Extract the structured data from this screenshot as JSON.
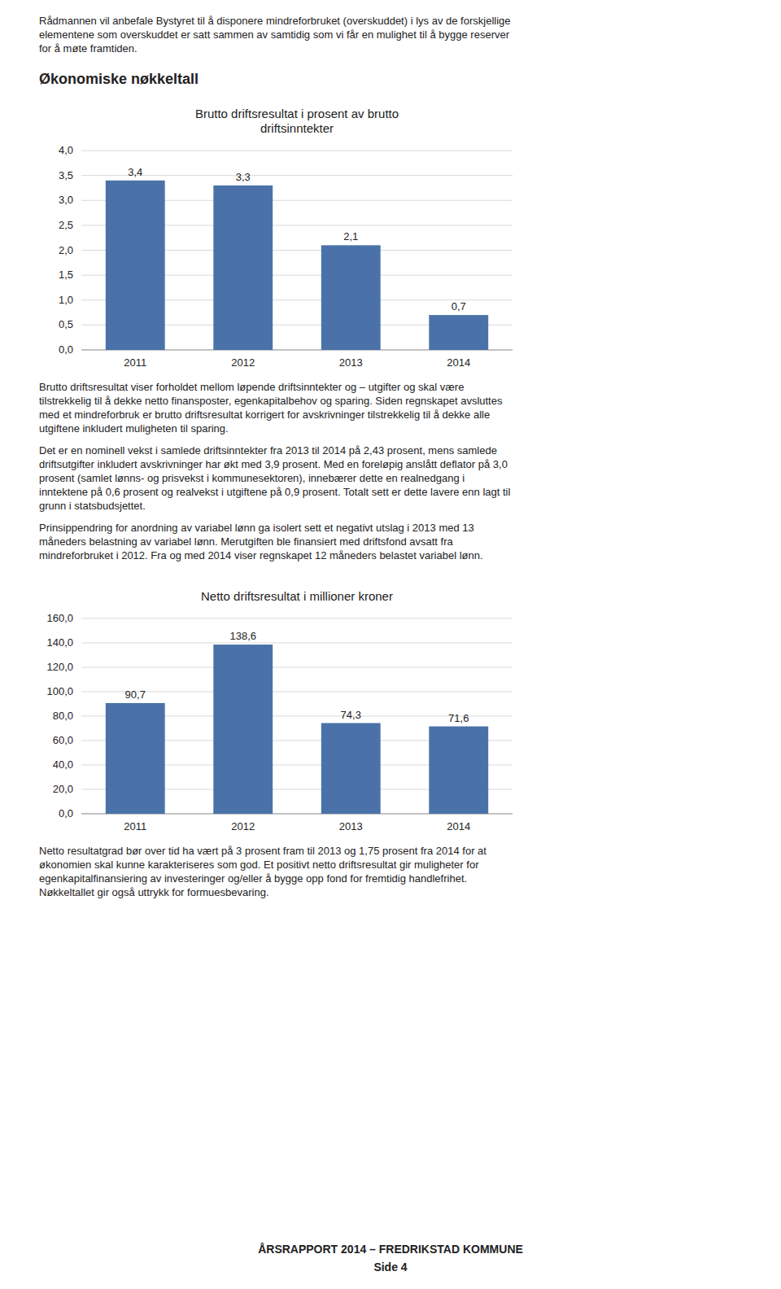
{
  "page_text": {
    "intro": [
      "Rådmannen vil anbefale Bystyret til å disponere mindreforbruket (overskuddet) i lys av de forskjellige",
      "elementene som overskuddet er satt sammen av samtidig som vi får en mulighet til å bygge reserver",
      "for å møte framtiden."
    ],
    "heading": "Økonomiske nøkkeltall",
    "paragraphs": [
      [
        "Brutto driftsresultat viser forholdet mellom løpende driftsinntekter og – utgifter og skal være",
        "tilstrekkelig til å dekke netto finansposter, egenkapitalbehov og sparing. Siden regnskapet avsluttes",
        "med et mindreforbruk er brutto driftsresultat korrigert for avskrivninger tilstrekkelig til å dekke alle",
        "utgiftene inkludert muligheten til sparing."
      ],
      [
        "Det er en nominell vekst i samlede driftsinntekter fra 2013 til 2014 på 2,43 prosent, mens samlede",
        "driftsutgifter inkludert avskrivninger har økt med 3,9 prosent. Med en foreløpig anslått deflator på 3,0",
        "prosent (samlet lønns- og prisvekst i kommunesektoren), innebærer dette en realnedgang i",
        "inntektene på 0,6 prosent og realvekst i utgiftene på 0,9 prosent. Totalt sett er dette lavere enn lagt til",
        "grunn i statsbudsjettet."
      ],
      [
        "Prinsippendring for anordning av variabel lønn ga isolert sett et negativt utslag i 2013 med 13",
        "måneders belastning av variabel lønn. Merutgiften ble finansiert med driftsfond avsatt fra",
        "mindreforbruket i 2012. Fra og med 2014 viser regnskapet 12 måneders belastet variabel lønn."
      ],
      [
        "Netto resultatgrad bør over tid ha vært på 3 prosent fram til 2013 og 1,75 prosent fra 2014 for at",
        "økonomien skal kunne karakteriseres som god. Et positivt netto driftsresultat gir muligheter for",
        "egenkapitalfinansiering av investeringer og/eller å bygge opp fond for fremtidig handlefrihet.",
        "Nøkkeltallet gir også uttrykk for formuesbevaring."
      ]
    ],
    "footer": [
      "ÅRSRAPPORT 2014 – FREDRIKSTAD KOMMUNE",
      "Side 4"
    ]
  },
  "chart_data": [
    {
      "type": "bar",
      "title": "Brutto driftsresultat i prosent av brutto\ndriftsinntekter",
      "categories": [
        "2011",
        "2012",
        "2013",
        "2014"
      ],
      "values": [
        3.4,
        3.3,
        2.1,
        0.7
      ],
      "value_labels": [
        "3,4",
        "3,3",
        "2,1",
        "0,7"
      ],
      "color": "#4a72a8",
      "ylim": [
        0.0,
        4.0
      ],
      "yticks": [
        {
          "value": 0.0,
          "label": "0,0"
        },
        {
          "value": 0.5,
          "label": "0,5"
        },
        {
          "value": 1.0,
          "label": "1,0"
        },
        {
          "value": 1.5,
          "label": "1,5"
        },
        {
          "value": 2.0,
          "label": "2,0"
        },
        {
          "value": 2.5,
          "label": "2,5"
        },
        {
          "value": 3.0,
          "label": "3,0"
        },
        {
          "value": 3.5,
          "label": "3,5"
        },
        {
          "value": 4.0,
          "label": "4,0"
        }
      ],
      "grid": true,
      "data_labels": true
    },
    {
      "type": "bar",
      "title": "Netto driftsresultat i millioner kroner",
      "categories": [
        "2011",
        "2012",
        "2013",
        "2014"
      ],
      "values": [
        90.7,
        138.6,
        74.3,
        71.6
      ],
      "value_labels": [
        "90,7",
        "138,6",
        "74,3",
        "71,6"
      ],
      "color": "#4a72a8",
      "ylim": [
        0.0,
        160.0
      ],
      "yticks": [
        {
          "value": 0.0,
          "label": "0,0"
        },
        {
          "value": 20.0,
          "label": "20,0"
        },
        {
          "value": 40.0,
          "label": "40,0"
        },
        {
          "value": 60.0,
          "label": "60,0"
        },
        {
          "value": 80.0,
          "label": "80,0"
        },
        {
          "value": 100.0,
          "label": "100,0"
        },
        {
          "value": 120.0,
          "label": "120,0"
        },
        {
          "value": 140.0,
          "label": "140,0"
        },
        {
          "value": 160.0,
          "label": "160,0"
        }
      ],
      "grid": true,
      "data_labels": true
    }
  ]
}
